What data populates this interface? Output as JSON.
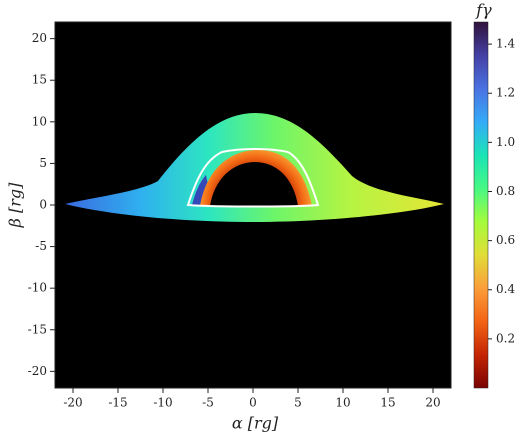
{
  "chart_data": {
    "type": "image",
    "xlabel": "α [rg]",
    "ylabel": "β [rg]",
    "xlim": [
      -22,
      22
    ],
    "ylim": [
      -22,
      22
    ],
    "xticks": [
      -20,
      -15,
      -10,
      -5,
      0,
      5,
      10,
      15,
      20
    ],
    "yticks": [
      -20,
      -15,
      -10,
      -5,
      0,
      5,
      10,
      15,
      20
    ],
    "colorbar": {
      "label": "fγ",
      "lim": [
        0,
        1.49
      ],
      "ticks": [
        0.2,
        0.4,
        0.6,
        0.8,
        {
          "value": 1,
          "label": "1.0"
        },
        1.2,
        1.4
      ],
      "colormap": [
        "#7a0403",
        "#c42503",
        "#f36315",
        "#fb9e3a",
        "#e1dd37",
        "#a4fc3c",
        "#46f884",
        "#1ae4b6",
        "#35abf8",
        "#4a72e1",
        "#4440a4",
        "#30123b"
      ]
    }
  }
}
